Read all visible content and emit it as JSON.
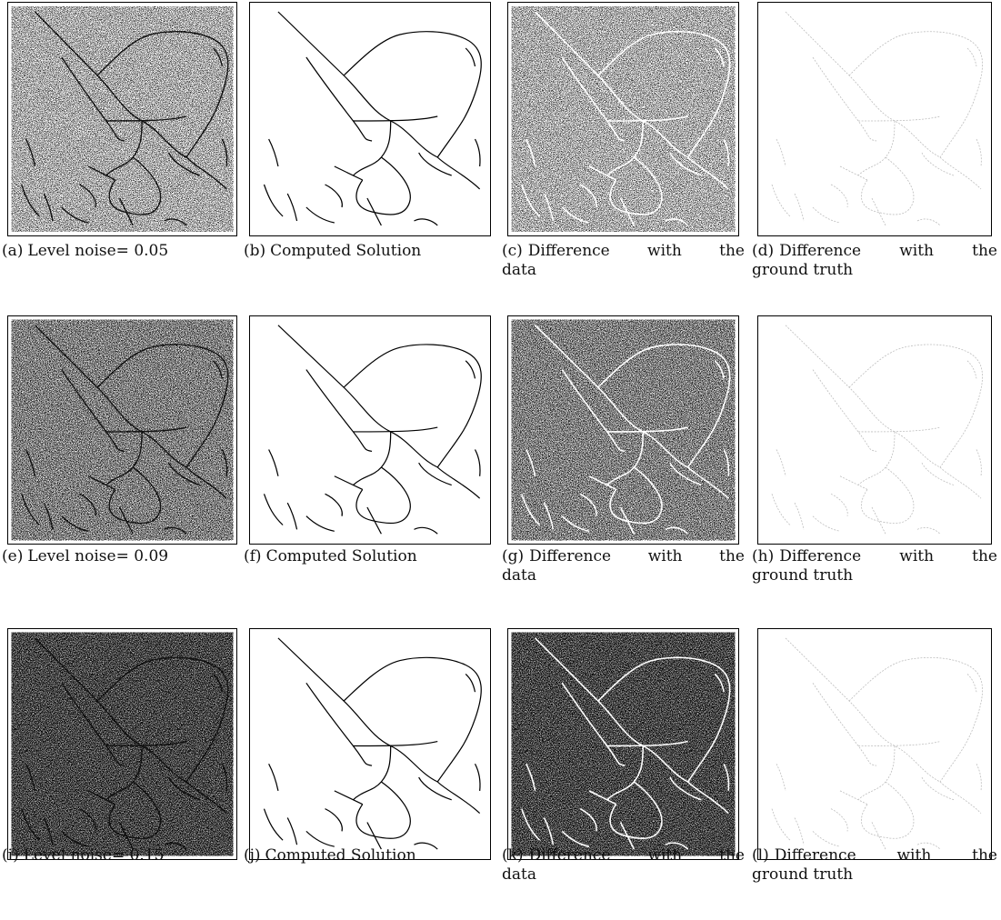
{
  "rows": [
    {
      "panels": [
        {
          "label": "(a)",
          "caption": "Level noise= 0.05",
          "kind": "noisy"
        },
        {
          "label": "(b)",
          "caption": "Computed Solution",
          "kind": "solution"
        },
        {
          "label": "(c)",
          "caption_line1": "Difference  with  the",
          "caption_line2": "data",
          "kind": "diffdata"
        },
        {
          "label": "(d)",
          "caption_line1": "Difference  with  the",
          "caption_line2": "ground truth",
          "kind": "diffgt"
        }
      ]
    },
    {
      "panels": [
        {
          "label": "(e)",
          "caption": "Level noise= 0.09",
          "kind": "noisy"
        },
        {
          "label": "(f)",
          "caption": "Computed Solution",
          "kind": "solution"
        },
        {
          "label": "(g)",
          "caption_line1": "Difference  with  the",
          "caption_line2": "data",
          "kind": "diffdata"
        },
        {
          "label": "(h)",
          "caption_line1": "Difference  with  the",
          "caption_line2": "ground truth",
          "kind": "diffgt"
        }
      ]
    },
    {
      "panels": [
        {
          "label": "(i)",
          "caption": "Level noise= 0.15",
          "kind": "noisy"
        },
        {
          "label": "(j)",
          "caption": "Computed Solution",
          "kind": "solution"
        },
        {
          "label": "(k)",
          "caption_line1": "Difference  with  the",
          "caption_line2": "data",
          "kind": "diffdata"
        },
        {
          "label": "(l)",
          "caption_line1": "Difference  with  the",
          "caption_line2": "ground truth",
          "kind": "diffgt"
        }
      ]
    }
  ]
}
